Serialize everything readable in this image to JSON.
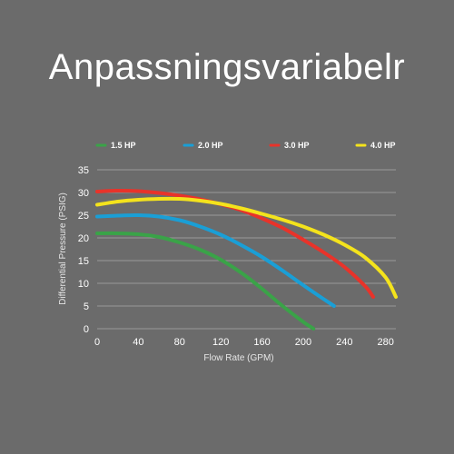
{
  "page": {
    "title": "Anpassningsvariabelr"
  },
  "chart_data": {
    "type": "line",
    "xlabel": "Flow Rate (GPM)",
    "ylabel": "Differential Pressure (PSIG)",
    "xlim": [
      0,
      290
    ],
    "ylim": [
      0,
      35
    ],
    "xticks": [
      0,
      40,
      80,
      120,
      160,
      200,
      240,
      280
    ],
    "yticks": [
      0,
      5,
      10,
      15,
      20,
      25,
      30,
      35
    ],
    "grid": "horizontal",
    "legend_position": "top",
    "series": [
      {
        "name": "1.5 HP",
        "color": "#3aa348",
        "x": [
          0,
          20,
          40,
          60,
          80,
          100,
          120,
          140,
          160,
          180,
          200,
          210
        ],
        "y": [
          21,
          21,
          20.8,
          20.2,
          19,
          17.4,
          15.2,
          12.3,
          8.8,
          5.0,
          1.5,
          0
        ]
      },
      {
        "name": "2.0 HP",
        "color": "#1a9fd6",
        "x": [
          0,
          20,
          40,
          60,
          80,
          100,
          120,
          140,
          160,
          180,
          200,
          220,
          230
        ],
        "y": [
          24.7,
          24.9,
          25,
          24.7,
          23.9,
          22.5,
          20.7,
          18.4,
          15.8,
          12.8,
          9.6,
          6.5,
          5
        ]
      },
      {
        "name": "3.0 HP",
        "color": "#e8332a",
        "x": [
          0,
          20,
          40,
          60,
          80,
          100,
          120,
          140,
          160,
          180,
          200,
          220,
          240,
          260,
          268
        ],
        "y": [
          30.2,
          30.4,
          30.3,
          29.9,
          29.3,
          28.5,
          27.4,
          26.1,
          24.3,
          22.2,
          19.6,
          16.8,
          13.6,
          9.4,
          7
        ]
      },
      {
        "name": "4.0 HP",
        "color": "#f4e31c",
        "x": [
          0,
          20,
          40,
          60,
          80,
          100,
          120,
          140,
          160,
          180,
          200,
          220,
          240,
          260,
          280,
          290
        ],
        "y": [
          27.3,
          28.0,
          28.4,
          28.6,
          28.6,
          28.2,
          27.5,
          26.5,
          25.3,
          24.0,
          22.5,
          20.7,
          18.5,
          15.7,
          11.3,
          7
        ]
      }
    ]
  }
}
